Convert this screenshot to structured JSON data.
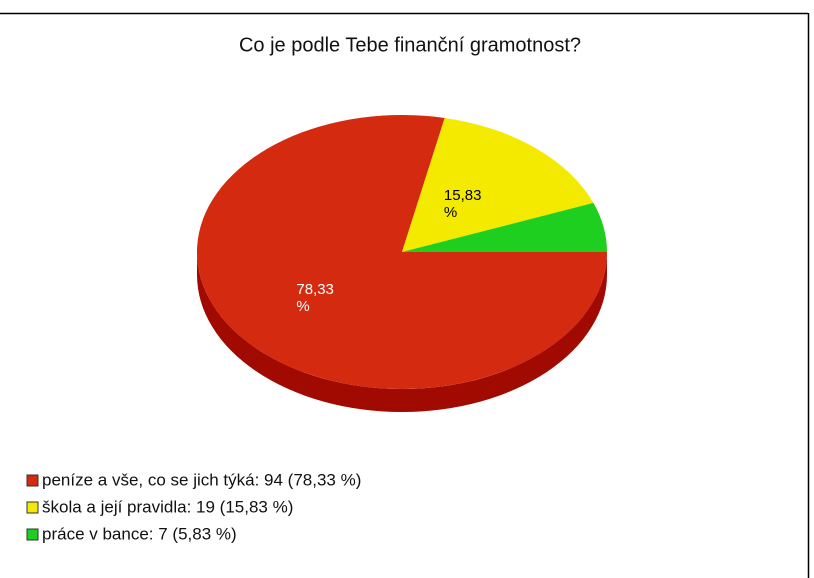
{
  "chart_data": {
    "type": "pie",
    "title": "Co je podle Tebe finanční gramotnost?",
    "categories": [
      "peníze a vše, co se jich týká: 94 (78,33 %)",
      "škola a její pravidla: 19 (15,83 %)",
      "práce v bance: 7 (5,83 %)"
    ],
    "values": [
      78.33,
      15.83,
      5.83
    ],
    "value_labels": [
      "78,33 %",
      "15,83 %",
      null
    ],
    "colors": [
      "#d42a10",
      "#f4ea00",
      "#1fcf1f"
    ],
    "side_colors": [
      "#a00a00",
      "#b8ae00",
      "#109010"
    ],
    "label_colors": [
      "#ffffff",
      "#000000",
      "#000000"
    ]
  }
}
